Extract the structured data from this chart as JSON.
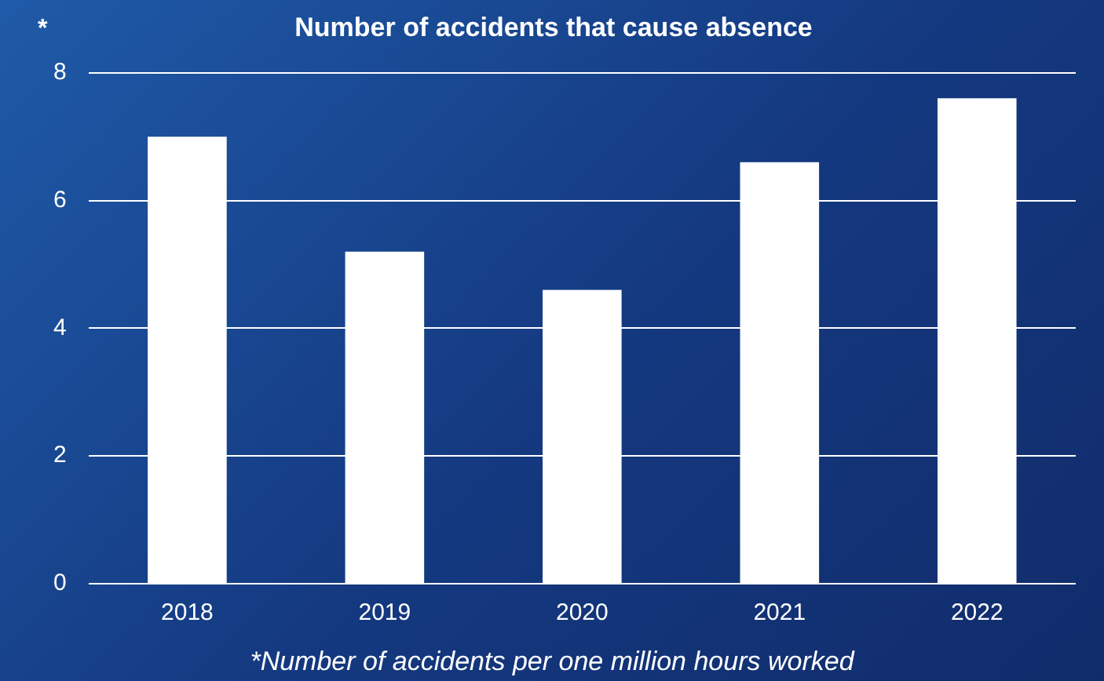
{
  "chart_data": {
    "type": "bar",
    "title": "Number of accidents that cause absence",
    "categories": [
      "2018",
      "2019",
      "2020",
      "2021",
      "2022"
    ],
    "values": [
      7.0,
      5.2,
      4.6,
      6.6,
      7.6
    ],
    "color": "#ffffff",
    "ylim": [
      0,
      8
    ],
    "yticks": [
      0,
      2,
      4,
      6,
      8
    ],
    "grid": "y",
    "legend": false,
    "annotations": [
      "*",
      "*Number of accidents per one million hours worked"
    ]
  }
}
